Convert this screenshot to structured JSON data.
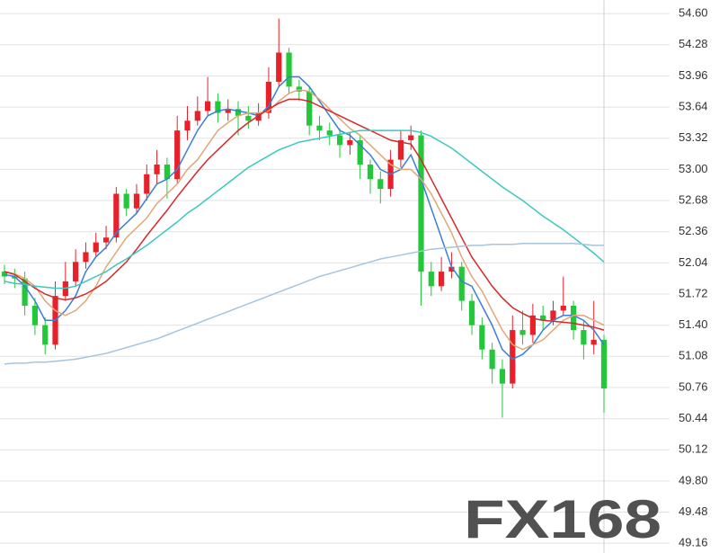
{
  "chart_data": {
    "type": "candlestick",
    "open": [
      51.95,
      51.9,
      51.88,
      51.6,
      51.4,
      51.2,
      51.7,
      51.85,
      52.05,
      52.15,
      52.25,
      52.3,
      52.75,
      52.6,
      52.75,
      52.95,
      53.05,
      52.9,
      53.4,
      53.5,
      53.6,
      53.7,
      53.58,
      53.62,
      53.55,
      53.5,
      53.58,
      53.9,
      54.2,
      53.85,
      53.8,
      53.45,
      53.4,
      53.35,
      53.25,
      53.3,
      53.05,
      52.9,
      52.8,
      53.1,
      53.3,
      53.35,
      51.95,
      51.8,
      51.95,
      52.0,
      51.65,
      51.4,
      51.15,
      50.95,
      50.8,
      51.35,
      51.3,
      51.5,
      51.45,
      51.55,
      51.6,
      51.35,
      51.2,
      51.25
    ],
    "high": [
      52.02,
      51.98,
      51.95,
      51.68,
      51.48,
      51.85,
      52.05,
      52.18,
      52.25,
      52.35,
      52.42,
      52.82,
      52.8,
      52.85,
      53.05,
      53.2,
      53.12,
      53.55,
      53.65,
      53.75,
      53.95,
      53.78,
      53.72,
      53.7,
      53.65,
      53.68,
      54.05,
      54.55,
      54.25,
      53.92,
      53.85,
      53.55,
      53.48,
      53.42,
      53.38,
      53.35,
      53.1,
      52.98,
      53.2,
      53.4,
      53.45,
      53.4,
      52.05,
      52.1,
      52.15,
      52.05,
      51.72,
      51.48,
      51.22,
      51.05,
      51.5,
      51.55,
      51.62,
      51.6,
      51.65,
      51.9,
      51.65,
      51.45,
      51.65,
      51.3
    ],
    "low": [
      51.82,
      51.78,
      51.5,
      51.3,
      51.1,
      51.15,
      51.65,
      51.8,
      51.98,
      52.1,
      52.18,
      52.25,
      52.52,
      52.55,
      52.68,
      52.85,
      52.7,
      52.85,
      53.3,
      53.45,
      53.55,
      53.48,
      53.5,
      53.35,
      53.42,
      53.45,
      53.52,
      53.85,
      53.78,
      53.7,
      53.35,
      53.3,
      53.25,
      53.12,
      53.15,
      52.9,
      52.75,
      52.65,
      52.72,
      53.02,
      53.2,
      51.6,
      51.7,
      51.75,
      51.88,
      51.55,
      51.3,
      51.05,
      50.8,
      50.45,
      50.75,
      51.2,
      51.22,
      51.35,
      51.4,
      51.5,
      51.25,
      51.05,
      51.1,
      50.5
    ],
    "close": [
      51.9,
      51.88,
      51.6,
      51.4,
      51.2,
      51.7,
      51.85,
      52.05,
      52.15,
      52.25,
      52.3,
      52.75,
      52.6,
      52.75,
      52.95,
      53.05,
      52.9,
      53.4,
      53.5,
      53.6,
      53.7,
      53.58,
      53.62,
      53.55,
      53.5,
      53.58,
      53.9,
      54.2,
      53.85,
      53.8,
      53.45,
      53.4,
      53.35,
      53.25,
      53.3,
      53.05,
      52.9,
      52.8,
      53.1,
      53.3,
      53.35,
      51.95,
      51.8,
      51.95,
      52.0,
      51.65,
      51.4,
      51.15,
      50.95,
      50.8,
      51.35,
      51.3,
      51.5,
      51.45,
      51.55,
      51.6,
      51.35,
      51.2,
      51.25,
      50.75
    ],
    "up_color": "#e8202a",
    "down_color": "#22c73a",
    "lines": [
      {
        "color": "#3a7fd5",
        "values": [
          51.92,
          51.9,
          51.8,
          51.65,
          51.45,
          51.45,
          51.55,
          51.7,
          51.95,
          52.1,
          52.2,
          52.35,
          52.45,
          52.55,
          52.7,
          52.85,
          52.9,
          53.0,
          53.2,
          53.4,
          53.55,
          53.6,
          53.62,
          53.6,
          53.58,
          53.55,
          53.65,
          53.85,
          53.95,
          53.95,
          53.85,
          53.7,
          53.55,
          53.4,
          53.35,
          53.25,
          53.15,
          53.0,
          52.95,
          53.0,
          53.15,
          52.9,
          52.6,
          52.3,
          52.0,
          51.85,
          51.8,
          51.6,
          51.4,
          51.15,
          51.05,
          51.1,
          51.2,
          51.35,
          51.45,
          51.5,
          51.5,
          51.45,
          51.35,
          51.2
        ]
      },
      {
        "color": "#e0a878",
        "values": [
          51.95,
          51.93,
          51.88,
          51.8,
          51.65,
          51.55,
          51.5,
          51.55,
          51.65,
          51.8,
          52.0,
          52.15,
          52.3,
          52.4,
          52.5,
          52.65,
          52.75,
          52.85,
          53.0,
          53.1,
          53.25,
          53.4,
          53.48,
          53.55,
          53.58,
          53.58,
          53.6,
          53.7,
          53.78,
          53.82,
          53.8,
          53.72,
          53.62,
          53.52,
          53.42,
          53.35,
          53.25,
          53.15,
          53.05,
          53.0,
          53.0,
          52.9,
          52.75,
          52.55,
          52.35,
          52.1,
          51.9,
          51.75,
          51.55,
          51.35,
          51.2,
          51.15,
          51.2,
          51.25,
          51.35,
          51.45,
          51.5,
          51.5,
          51.45,
          51.4
        ]
      },
      {
        "color": "#d42a2a",
        "values": [
          51.95,
          51.92,
          51.85,
          51.78,
          51.72,
          51.68,
          51.66,
          51.68,
          51.72,
          51.78,
          51.85,
          51.95,
          52.05,
          52.18,
          52.32,
          52.45,
          52.58,
          52.72,
          52.85,
          52.98,
          53.1,
          53.2,
          53.3,
          53.4,
          53.48,
          53.55,
          53.62,
          53.68,
          53.72,
          53.72,
          53.7,
          53.65,
          53.6,
          53.55,
          53.5,
          53.45,
          53.4,
          53.35,
          53.3,
          53.28,
          53.26,
          53.1,
          52.9,
          52.7,
          52.5,
          52.3,
          52.1,
          51.95,
          51.8,
          51.68,
          51.58,
          51.52,
          51.47,
          51.45,
          51.44,
          51.43,
          51.42,
          51.4,
          51.38,
          51.35
        ]
      },
      {
        "color": "#3cc8c0",
        "values": [
          51.85,
          51.83,
          51.82,
          51.8,
          51.79,
          51.78,
          51.78,
          51.8,
          51.85,
          51.9,
          51.95,
          52.02,
          52.08,
          52.15,
          52.22,
          52.3,
          52.38,
          52.46,
          52.55,
          52.62,
          52.7,
          52.78,
          52.86,
          52.94,
          53.02,
          53.08,
          53.14,
          53.2,
          53.24,
          53.28,
          53.3,
          53.32,
          53.34,
          53.36,
          53.38,
          53.4,
          53.4,
          53.4,
          53.4,
          53.4,
          53.4,
          53.38,
          53.34,
          53.28,
          53.22,
          53.14,
          53.06,
          52.98,
          52.9,
          52.82,
          52.75,
          52.68,
          52.6,
          52.52,
          52.45,
          52.38,
          52.3,
          52.22,
          52.14,
          52.05
        ]
      },
      {
        "color": "#a8c4dc",
        "values": [
          51.0,
          51.01,
          51.01,
          51.02,
          51.02,
          51.03,
          51.04,
          51.05,
          51.07,
          51.09,
          51.11,
          51.14,
          51.17,
          51.2,
          51.23,
          51.26,
          51.3,
          51.34,
          51.38,
          51.42,
          51.46,
          51.5,
          51.54,
          51.58,
          51.62,
          51.66,
          51.7,
          51.74,
          51.78,
          51.82,
          51.86,
          51.9,
          51.93,
          51.96,
          51.99,
          52.02,
          52.05,
          52.08,
          52.1,
          52.12,
          52.14,
          52.16,
          52.18,
          52.19,
          52.2,
          52.21,
          52.22,
          52.22,
          52.23,
          52.23,
          52.23,
          52.24,
          52.24,
          52.24,
          52.24,
          52.24,
          52.24,
          52.23,
          52.22,
          52.22
        ]
      }
    ],
    "ylim": [
      49.06,
      54.74
    ],
    "yticks": [
      {
        "value": 54.6,
        "label": "54.60"
      },
      54.28,
      53.96,
      53.64,
      53.32,
      {
        "value": 53.0,
        "label": "53.00"
      },
      52.68,
      52.36,
      52.04,
      51.72,
      {
        "value": 51.4,
        "label": "51.40"
      },
      51.08,
      50.76,
      50.44,
      50.12,
      {
        "value": 49.8,
        "label": "49.80"
      },
      49.48,
      49.16
    ],
    "grid": true,
    "axis_side": "right",
    "watermark": "FX168"
  }
}
